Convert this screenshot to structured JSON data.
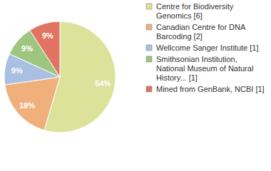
{
  "chart_data": {
    "type": "pie",
    "categories": [
      "Centre for Biodiversity Genomics [6]",
      "Canadian Centre for DNA Barcoding [2]",
      "Wellcome Sanger Institute [1]",
      "Smithsonian Institution, National Museum of Natural History... [1]",
      "Mined from GenBank, NCBI [1]"
    ],
    "values": [
      54,
      18,
      9,
      9,
      9
    ],
    "value_labels": [
      "54%",
      "18%",
      "9%",
      "9%",
      "9%"
    ],
    "colors": [
      "#dde29b",
      "#f0b07c",
      "#a9c0e2",
      "#9fc680",
      "#e07361"
    ],
    "data_labels": true,
    "legend": "right"
  }
}
